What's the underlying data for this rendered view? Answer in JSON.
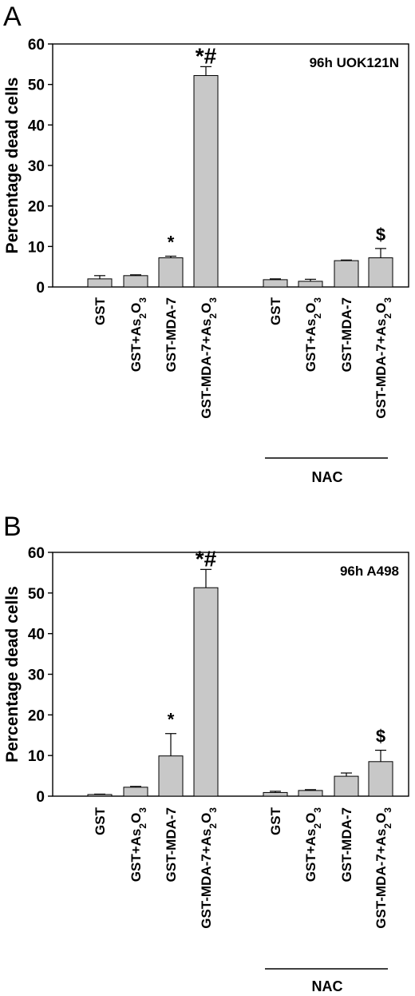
{
  "chart_data": [
    {
      "panel": "A",
      "type": "bar",
      "ylabel": "Percentage dead cells",
      "ylim": [
        0,
        60
      ],
      "yticks": [
        "0",
        "10",
        "20",
        "30",
        "40",
        "50",
        "60"
      ],
      "inset_label": "96h UOK121N",
      "group_label": "NAC",
      "categories": [
        {
          "base": "GST",
          "sub": ""
        },
        {
          "base": "GST+As",
          "sub": "2",
          "mid": "O",
          "sub2": "3"
        },
        {
          "base": "GST-MDA-7",
          "sub": ""
        },
        {
          "base": "GST-MDA-7+As",
          "sub": "2",
          "mid": "O",
          "sub2": "3"
        },
        {
          "base": "GST",
          "sub": ""
        },
        {
          "base": "GST+As",
          "sub": "2",
          "mid": "O",
          "sub2": "3"
        },
        {
          "base": "GST-MDA-7",
          "sub": ""
        },
        {
          "base": "GST-MDA-7+As",
          "sub": "2",
          "mid": "O",
          "sub2": "3"
        }
      ],
      "values": [
        2.0,
        2.8,
        7.2,
        52.2,
        1.8,
        1.4,
        6.5,
        7.2
      ],
      "errors": [
        0.8,
        0.2,
        0.4,
        2.2,
        0.2,
        0.5,
        0.15,
        2.3
      ],
      "markers": [
        "",
        "",
        "*",
        "*#",
        "",
        "",
        "",
        "$"
      ],
      "bar_color": "#c8c8c8"
    },
    {
      "panel": "B",
      "type": "bar",
      "ylabel": "Percentage dead cells",
      "ylim": [
        0,
        60
      ],
      "yticks": [
        "0",
        "10",
        "20",
        "30",
        "40",
        "50",
        "60"
      ],
      "inset_label": "96h A498",
      "group_label": "NAC",
      "categories": [
        {
          "base": "GST",
          "sub": ""
        },
        {
          "base": "GST+As",
          "sub": "2",
          "mid": "O",
          "sub2": "3"
        },
        {
          "base": "GST-MDA-7",
          "sub": ""
        },
        {
          "base": "GST-MDA-7+As",
          "sub": "2",
          "mid": "O",
          "sub2": "3"
        },
        {
          "base": "GST",
          "sub": ""
        },
        {
          "base": "GST+As",
          "sub": "2",
          "mid": "O",
          "sub2": "3"
        },
        {
          "base": "GST-MDA-7",
          "sub": ""
        },
        {
          "base": "GST-MDA-7+As",
          "sub": "2",
          "mid": "O",
          "sub2": "3"
        }
      ],
      "values": [
        0.4,
        2.2,
        9.9,
        51.3,
        0.9,
        1.4,
        4.9,
        8.5
      ],
      "errors": [
        0.1,
        0.2,
        5.5,
        4.5,
        0.3,
        0.2,
        0.8,
        2.8
      ],
      "markers": [
        "",
        "",
        "*",
        "*#",
        "",
        "",
        "",
        "$"
      ],
      "bar_color": "#c8c8c8"
    }
  ]
}
